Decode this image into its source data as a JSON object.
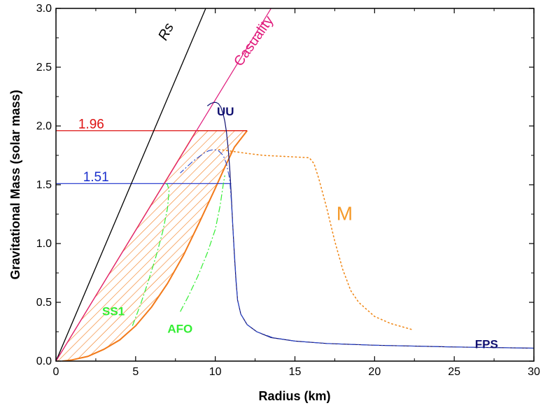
{
  "chart_data": {
    "type": "line",
    "xlabel": "Radius (km)",
    "ylabel": "Gravitational Mass  (solar mass)",
    "xlim": [
      0,
      30
    ],
    "ylim": [
      0,
      3.0
    ],
    "x_ticks": [
      "0",
      "5",
      "10",
      "15",
      "20",
      "25",
      "30"
    ],
    "y_ticks": [
      "0.0",
      "0.5",
      "1.0",
      "1.5",
      "2.0",
      "2.5",
      "3.0"
    ],
    "grid": false,
    "annotations": [
      {
        "text": "Rs",
        "x": 6.9,
        "y": 2.72,
        "color": "#000000",
        "rotate": -62,
        "size": 20,
        "italic": true,
        "bold": false
      },
      {
        "text": "Casuality",
        "x": 11.6,
        "y": 2.5,
        "color": "#e0187a",
        "rotate": -55,
        "size": 20,
        "italic": false,
        "bold": false
      },
      {
        "text": "UU",
        "x": 10.1,
        "y": 2.09,
        "color": "#101070",
        "rotate": 0,
        "size": 17,
        "italic": false,
        "bold": true
      },
      {
        "text": "1.96",
        "x": 1.4,
        "y": 1.98,
        "color": "#dd1111",
        "rotate": 0,
        "size": 19,
        "italic": false,
        "bold": false
      },
      {
        "text": "1.51",
        "x": 1.7,
        "y": 1.53,
        "color": "#1a2fcc",
        "rotate": 0,
        "size": 19,
        "italic": false,
        "bold": false
      },
      {
        "text": "M",
        "x": 17.6,
        "y": 1.2,
        "color": "#f59a2a",
        "rotate": 0,
        "size": 28,
        "italic": false,
        "bold": false
      },
      {
        "text": "SS1",
        "x": 2.9,
        "y": 0.39,
        "color": "#33ee33",
        "rotate": 0,
        "size": 17,
        "italic": false,
        "bold": true
      },
      {
        "text": "AFO",
        "x": 7.0,
        "y": 0.24,
        "color": "#33ee33",
        "rotate": 0,
        "size": 17,
        "italic": false,
        "bold": true
      },
      {
        "text": "FPS",
        "x": 26.3,
        "y": 0.11,
        "color": "#101070",
        "rotate": 0,
        "size": 17,
        "italic": false,
        "bold": true
      }
    ],
    "hlines": [
      {
        "label": "1.96",
        "y": 1.96,
        "x_from": 0,
        "x_to": 12.0,
        "color": "#dd1111"
      },
      {
        "label": "1.51",
        "y": 1.51,
        "x_from": 0,
        "x_to": 11.0,
        "color": "#1a2fcc"
      }
    ],
    "hatched_region": {
      "color": "#f27a1a",
      "upper_right_vertex": [
        12.0,
        1.96
      ],
      "upper_left_vertex": [
        8.8,
        1.96
      ],
      "lower_curve": [
        [
          0.4,
          0.0
        ],
        [
          1.0,
          0.01
        ],
        [
          2.0,
          0.04
        ],
        [
          3.0,
          0.1
        ],
        [
          4.0,
          0.18
        ],
        [
          5.0,
          0.3
        ],
        [
          6.0,
          0.46
        ],
        [
          7.0,
          0.66
        ],
        [
          8.0,
          0.9
        ],
        [
          9.0,
          1.18
        ],
        [
          10.0,
          1.47
        ],
        [
          10.6,
          1.65
        ],
        [
          11.2,
          1.82
        ],
        [
          12.0,
          1.96
        ]
      ]
    },
    "series": [
      {
        "name": "Rs",
        "color": "#000000",
        "style": "solid",
        "width": 1.3,
        "x": [
          0,
          9.4
        ],
        "y": [
          0,
          3.0
        ]
      },
      {
        "name": "Casuality",
        "color": "#e0187a",
        "style": "solid",
        "width": 1.2,
        "x": [
          0,
          13.5
        ],
        "y": [
          0,
          3.0
        ]
      },
      {
        "name": "UU",
        "color": "#101070",
        "style": "solid",
        "width": 1.2,
        "x": [
          30,
          25,
          20,
          17,
          15,
          13.5,
          12.6,
          12.0,
          11.6,
          11.4,
          11.3,
          11.2,
          11.1,
          11.0,
          10.9,
          10.8,
          10.7,
          10.6,
          10.5,
          10.35,
          10.2,
          10.05,
          9.9,
          9.7,
          9.5
        ],
        "y": [
          0.11,
          0.12,
          0.135,
          0.15,
          0.17,
          0.2,
          0.25,
          0.31,
          0.4,
          0.52,
          0.68,
          0.9,
          1.15,
          1.42,
          1.65,
          1.82,
          1.95,
          2.04,
          2.1,
          2.16,
          2.19,
          2.2,
          2.2,
          2.19,
          2.17
        ]
      },
      {
        "name": "FPS",
        "color": "#2b46c8",
        "style": "dashdot",
        "width": 1.1,
        "x": [
          30,
          25,
          20,
          17,
          15,
          13.6,
          12.6,
          12.0,
          11.6,
          11.4,
          11.3,
          11.2,
          11.1,
          11.0,
          10.9,
          10.7,
          10.5,
          10.2,
          9.9,
          9.6,
          9.3,
          9.0,
          8.6,
          8.2,
          7.8
        ],
        "y": [
          0.11,
          0.12,
          0.135,
          0.15,
          0.17,
          0.2,
          0.25,
          0.31,
          0.4,
          0.52,
          0.7,
          0.92,
          1.15,
          1.38,
          1.55,
          1.68,
          1.75,
          1.79,
          1.8,
          1.79,
          1.77,
          1.74,
          1.7,
          1.65,
          1.6
        ]
      },
      {
        "name": "M",
        "color": "#f08a1c",
        "style": "dotted",
        "width": 1.6,
        "x": [
          22.3,
          21,
          20,
          19,
          18.5,
          18,
          17.5,
          17,
          16.5,
          16.2,
          15.9,
          14.5,
          13,
          11.8,
          10.8,
          10.2
        ],
        "y": [
          0.27,
          0.32,
          0.38,
          0.5,
          0.6,
          0.78,
          1.02,
          1.3,
          1.55,
          1.68,
          1.73,
          1.74,
          1.75,
          1.77,
          1.79,
          1.8
        ]
      },
      {
        "name": "SS1",
        "color": "#33ee33",
        "style": "dashdot",
        "width": 1.2,
        "x": [
          4.8,
          5.3,
          5.8,
          6.3,
          6.7,
          7.0,
          7.1,
          7.0,
          6.9
        ],
        "y": [
          0.3,
          0.48,
          0.68,
          0.9,
          1.1,
          1.3,
          1.45,
          1.5,
          1.51
        ]
      },
      {
        "name": "AFO",
        "color": "#33ee33",
        "style": "dashdot",
        "width": 1.2,
        "x": [
          7.8,
          8.3,
          8.9,
          9.5,
          10.0,
          10.3,
          10.5,
          10.6
        ],
        "y": [
          0.42,
          0.55,
          0.72,
          0.92,
          1.12,
          1.32,
          1.5,
          1.58
        ]
      }
    ]
  }
}
